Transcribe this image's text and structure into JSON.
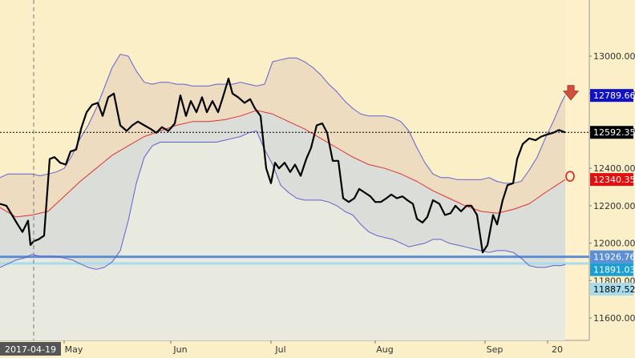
{
  "chart_data": {
    "type": "line",
    "title": "",
    "xlabel": "",
    "ylabel": "",
    "ylim": [
      11480,
      13300
    ],
    "x_range": [
      0,
      705
    ],
    "y_ticks": [
      {
        "value": 13000,
        "label": "13000.00"
      },
      {
        "value": 12800,
        "label": "12800.00"
      },
      {
        "value": 12600,
        "label": "12600.00"
      },
      {
        "value": 12400,
        "label": "12400.00"
      },
      {
        "value": 12200,
        "label": "12200.00"
      },
      {
        "value": 12000,
        "label": "12000.00"
      },
      {
        "value": 11800,
        "label": "11800.00"
      },
      {
        "value": 11600,
        "label": "11600.00"
      }
    ],
    "x_ticks": [
      {
        "x": 92,
        "label": "May"
      },
      {
        "x": 225,
        "label": "Jun"
      },
      {
        "x": 350,
        "label": "Jul"
      },
      {
        "x": 480,
        "label": "Aug"
      },
      {
        "x": 617,
        "label": "Sep"
      },
      {
        "x": 695,
        "label": "20"
      }
    ],
    "crosshair": {
      "x": 42,
      "date_label": "2017-04-19",
      "y_value": 12592.35,
      "y_label": "12592.35"
    },
    "value_labels": [
      {
        "value": 12789.66,
        "text": "12789.66",
        "bg": "#1010C8",
        "fg": "#FFFFFF"
      },
      {
        "value": 12592.35,
        "text": "12592.35",
        "bg": "#000000",
        "fg": "#FFFFFF"
      },
      {
        "value": 12340.35,
        "text": "12340.35",
        "bg": "#E01010",
        "fg": "#FFFFFF"
      },
      {
        "value": 11926.76,
        "text": "11926.76",
        "bg": "#5C8FD6",
        "fg": "#FFFFFF"
      },
      {
        "value": 11891.03,
        "text": "11891.03",
        "bg": "#1AA0D0",
        "fg": "#FFFFFF"
      },
      {
        "value": 11887.52,
        "text": "11887.52",
        "bg": "#A8DCEC",
        "fg": "#000000"
      }
    ],
    "horizontal_lines": [
      {
        "value": 11926.76,
        "color": "#5C8FD6"
      },
      {
        "value": 11891.03,
        "color": "#A8DCEC"
      }
    ],
    "series": [
      {
        "key": "price",
        "color": "#000000",
        "x": [
          0,
          8,
          15,
          22,
          28,
          35,
          38,
          42,
          48,
          55,
          62,
          68,
          75,
          82,
          88,
          95,
          101,
          108,
          115,
          122,
          128,
          135,
          142,
          150,
          158,
          165,
          172,
          180,
          188,
          195,
          202,
          210,
          218,
          225,
          232,
          238,
          245,
          252,
          258,
          265,
          272,
          278,
          285,
          290,
          297,
          305,
          312,
          318,
          325,
          332,
          338,
          343,
          348,
          355,
          362,
          368,
          375,
          382,
          388,
          395,
          402,
          408,
          415,
          422,
          428,
          435,
          442,
          448,
          455,
          462,
          468,
          475,
          482,
          488,
          495,
          502,
          508,
          515,
          520,
          527,
          533,
          540,
          548,
          555,
          562,
          568,
          575,
          582,
          588,
          595,
          602,
          608,
          615,
          620,
          627,
          633,
          640,
          645,
          652,
          660,
          668,
          675,
          682,
          690,
          697,
          705
        ],
        "values": [
          12210,
          12200,
          12150,
          12100,
          12060,
          12120,
          11990,
          12010,
          12020,
          12040,
          12450,
          12460,
          12430,
          12420,
          12490,
          12500,
          12610,
          12700,
          12740,
          12750,
          12680,
          12780,
          12800,
          12630,
          12600,
          12630,
          12650,
          12630,
          12610,
          12590,
          12620,
          12600,
          12640,
          12790,
          12680,
          12760,
          12700,
          12780,
          12700,
          12760,
          12700,
          12780,
          12880,
          12800,
          12780,
          12750,
          12770,
          12720,
          12680,
          12400,
          12320,
          12430,
          12400,
          12430,
          12380,
          12420,
          12360,
          12450,
          12510,
          12630,
          12640,
          12590,
          12440,
          12440,
          12240,
          12220,
          12240,
          12290,
          12270,
          12250,
          12220,
          12220,
          12240,
          12260,
          12240,
          12250,
          12230,
          12210,
          12130,
          12110,
          12140,
          12230,
          12210,
          12150,
          12160,
          12200,
          12170,
          12200,
          12200,
          12150,
          11950,
          11990,
          12150,
          12100,
          12230,
          12310,
          12320,
          12450,
          12530,
          12560,
          12550,
          12570,
          12580,
          12590,
          12605,
          12592
        ]
      },
      {
        "key": "ma",
        "color": "#E03030",
        "x": [
          0,
          20,
          40,
          60,
          80,
          100,
          120,
          140,
          160,
          180,
          200,
          220,
          240,
          260,
          280,
          300,
          320,
          340,
          360,
          380,
          400,
          420,
          440,
          460,
          480,
          500,
          520,
          540,
          560,
          580,
          600,
          620,
          640,
          660,
          680,
          705
        ],
        "values": [
          12190,
          12140,
          12150,
          12170,
          12250,
          12330,
          12400,
          12470,
          12520,
          12570,
          12600,
          12630,
          12650,
          12650,
          12660,
          12680,
          12710,
          12690,
          12650,
          12610,
          12560,
          12510,
          12460,
          12420,
          12400,
          12370,
          12330,
          12280,
          12240,
          12200,
          12170,
          12160,
          12180,
          12210,
          12270,
          12340
        ]
      },
      {
        "key": "upper",
        "color": "#6060D0",
        "x": [
          0,
          10,
          20,
          30,
          40,
          50,
          60,
          70,
          80,
          90,
          100,
          110,
          120,
          130,
          140,
          150,
          160,
          170,
          180,
          190,
          200,
          210,
          220,
          230,
          240,
          250,
          260,
          270,
          280,
          290,
          300,
          310,
          320,
          330,
          340,
          350,
          360,
          370,
          380,
          390,
          400,
          410,
          420,
          430,
          440,
          450,
          460,
          470,
          480,
          490,
          500,
          510,
          520,
          530,
          540,
          550,
          560,
          570,
          580,
          590,
          600,
          610,
          620,
          630,
          640,
          650,
          660,
          670,
          680,
          690,
          700,
          705
        ],
        "values": [
          12350,
          12370,
          12370,
          12370,
          12370,
          12360,
          12370,
          12380,
          12400,
          12470,
          12560,
          12630,
          12720,
          12830,
          12940,
          13010,
          13000,
          12920,
          12860,
          12850,
          12860,
          12860,
          12850,
          12850,
          12840,
          12840,
          12840,
          12850,
          12850,
          12850,
          12860,
          12850,
          12840,
          12850,
          12970,
          12980,
          12990,
          12990,
          12970,
          12940,
          12900,
          12850,
          12810,
          12760,
          12720,
          12690,
          12680,
          12680,
          12680,
          12670,
          12650,
          12600,
          12510,
          12430,
          12370,
          12350,
          12350,
          12340,
          12340,
          12340,
          12340,
          12350,
          12330,
          12320,
          12320,
          12330,
          12390,
          12460,
          12560,
          12650,
          12750,
          12790
        ]
      },
      {
        "key": "lower",
        "color": "#6060D0",
        "x": [
          0,
          10,
          20,
          30,
          40,
          50,
          60,
          70,
          80,
          90,
          100,
          110,
          120,
          130,
          140,
          150,
          160,
          170,
          180,
          190,
          200,
          210,
          220,
          230,
          240,
          250,
          260,
          270,
          280,
          290,
          300,
          310,
          320,
          330,
          340,
          350,
          360,
          370,
          380,
          390,
          400,
          410,
          420,
          430,
          440,
          450,
          460,
          470,
          480,
          490,
          500,
          510,
          520,
          530,
          540,
          550,
          560,
          570,
          580,
          590,
          600,
          610,
          620,
          630,
          640,
          650,
          660,
          670,
          680,
          690,
          700,
          705
        ],
        "values": [
          11870,
          11890,
          11910,
          11920,
          11940,
          11930,
          11930,
          11930,
          11920,
          11910,
          11890,
          11870,
          11860,
          11870,
          11900,
          11960,
          12120,
          12320,
          12460,
          12520,
          12540,
          12540,
          12540,
          12540,
          12540,
          12540,
          12540,
          12540,
          12550,
          12560,
          12570,
          12590,
          12600,
          12500,
          12420,
          12310,
          12270,
          12240,
          12230,
          12230,
          12230,
          12220,
          12200,
          12170,
          12150,
          12100,
          12060,
          12040,
          12030,
          12020,
          12000,
          11980,
          11990,
          12000,
          12020,
          12020,
          12000,
          11990,
          11980,
          11970,
          11960,
          11950,
          11960,
          11960,
          11950,
          11920,
          11880,
          11870,
          11870,
          11880,
          11880,
          11885
        ]
      }
    ],
    "markers": [
      {
        "kind": "arrow-down",
        "x": 712,
        "value": 12800,
        "color": "#D05040"
      },
      {
        "kind": "circle",
        "x": 711,
        "value": 12340,
        "color": "#E02020"
      }
    ]
  },
  "ui": {
    "label_x_axis_date": "2017-04-19"
  }
}
